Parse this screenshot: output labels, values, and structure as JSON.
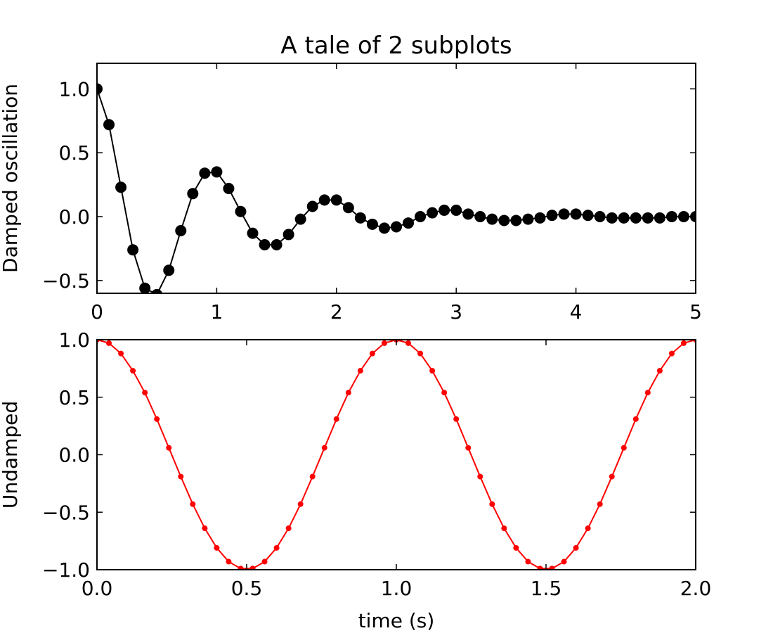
{
  "chart_data": [
    {
      "type": "line",
      "title": "A tale of 2 subplots",
      "xlabel": "",
      "ylabel": "Damped oscillation",
      "xlim": [
        0,
        5
      ],
      "ylim": [
        -0.6,
        1.2
      ],
      "xticks": [
        "0",
        "1",
        "2",
        "3",
        "4",
        "5"
      ],
      "yticks": [
        "1.0",
        "0.5",
        "0.0",
        "−0.5"
      ],
      "grid": false,
      "series": [
        {
          "color": "#000000",
          "marker": "large-circle",
          "x": [
            0.0,
            0.1,
            0.2,
            0.3,
            0.4,
            0.5,
            0.6,
            0.7,
            0.8,
            0.9,
            1.0,
            1.1,
            1.2,
            1.3,
            1.4,
            1.5,
            1.6,
            1.7,
            1.8,
            1.9,
            2.0,
            2.1,
            2.2,
            2.3,
            2.4,
            2.5,
            2.6,
            2.7,
            2.8,
            2.9,
            3.0,
            3.1,
            3.2,
            3.3,
            3.4,
            3.5,
            3.6,
            3.7,
            3.8,
            3.9,
            4.0,
            4.1,
            4.2,
            4.3,
            4.4,
            4.5,
            4.6,
            4.7,
            4.8,
            4.9,
            5.0
          ],
          "y": [
            1.0,
            0.72,
            0.23,
            -0.26,
            -0.56,
            -0.61,
            -0.42,
            -0.11,
            0.18,
            0.34,
            0.35,
            0.22,
            0.04,
            -0.13,
            -0.22,
            -0.22,
            -0.14,
            -0.02,
            0.08,
            0.13,
            0.13,
            0.07,
            -0.01,
            -0.06,
            -0.09,
            -0.08,
            -0.05,
            0.0,
            0.03,
            0.05,
            0.05,
            0.02,
            0.0,
            -0.02,
            -0.03,
            -0.03,
            -0.02,
            -0.01,
            0.01,
            0.02,
            0.02,
            0.01,
            0.0,
            -0.01,
            -0.01,
            -0.01,
            -0.01,
            -0.01,
            0.0,
            0.0,
            0.0
          ]
        }
      ]
    },
    {
      "type": "line",
      "title": "",
      "xlabel": "time (s)",
      "ylabel": "Undamped",
      "xlim": [
        0,
        2
      ],
      "ylim": [
        -1,
        1
      ],
      "xticks": [
        "0.0",
        "0.5",
        "1.0",
        "1.5",
        "2.0"
      ],
      "yticks": [
        "1.0",
        "0.5",
        "0.0",
        "−0.5",
        "−1.0"
      ],
      "grid": false,
      "series": [
        {
          "color": "#ff0000",
          "marker": "small-dot",
          "x": [
            0.0,
            0.04,
            0.08,
            0.12,
            0.16,
            0.2,
            0.24,
            0.28,
            0.32,
            0.36,
            0.4,
            0.44,
            0.48,
            0.52,
            0.56,
            0.6,
            0.64,
            0.68,
            0.72,
            0.76,
            0.8,
            0.84,
            0.88,
            0.92,
            0.96,
            1.0,
            1.04,
            1.08,
            1.12,
            1.16,
            1.2,
            1.24,
            1.28,
            1.32,
            1.36,
            1.4,
            1.44,
            1.48,
            1.52,
            1.56,
            1.6,
            1.64,
            1.68,
            1.72,
            1.76,
            1.8,
            1.84,
            1.88,
            1.92,
            1.96,
            2.0
          ],
          "y": [
            1.0,
            0.97,
            0.88,
            0.73,
            0.54,
            0.31,
            0.06,
            -0.19,
            -0.43,
            -0.64,
            -0.81,
            -0.93,
            -0.99,
            -0.99,
            -0.93,
            -0.81,
            -0.64,
            -0.43,
            -0.19,
            0.06,
            0.31,
            0.54,
            0.73,
            0.88,
            0.97,
            1.0,
            0.97,
            0.88,
            0.73,
            0.54,
            0.31,
            0.06,
            -0.19,
            -0.43,
            -0.64,
            -0.81,
            -0.93,
            -0.99,
            -0.99,
            -0.93,
            -0.81,
            -0.64,
            -0.43,
            -0.19,
            0.06,
            0.31,
            0.54,
            0.73,
            0.88,
            0.97,
            1.0
          ]
        }
      ]
    }
  ]
}
